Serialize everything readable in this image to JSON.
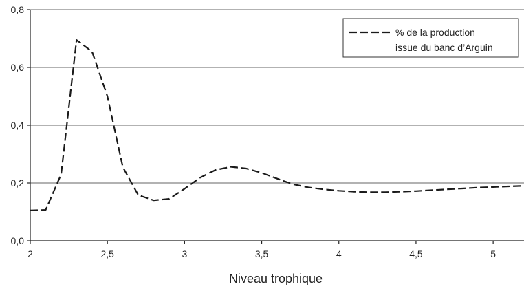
{
  "chart_data": {
    "type": "line",
    "title": "",
    "xlabel": "Niveau trophique",
    "ylabel": "",
    "xlim": [
      2,
      5.2
    ],
    "ylim": [
      0,
      0.8
    ],
    "x_ticks": [
      2,
      2.5,
      3,
      3.5,
      4,
      4.5,
      5
    ],
    "x_tick_labels": [
      "2",
      "2,5",
      "3",
      "3,5",
      "4",
      "4,5",
      "5"
    ],
    "y_ticks": [
      0,
      0.2,
      0.4,
      0.6,
      0.8
    ],
    "y_tick_labels": [
      "0,0",
      "0,2",
      "0,4",
      "0,6",
      "0,8"
    ],
    "grid": "horizontal",
    "legend_position": "top-right",
    "series": [
      {
        "name": "% de la production issue du banc d’Arguin",
        "legend_lines": [
          "% de la production",
          "issue du banc d’Arguin"
        ],
        "line_style": "dashed",
        "color": "#1a1a1a",
        "x": [
          2.0,
          2.1,
          2.2,
          2.3,
          2.4,
          2.5,
          2.6,
          2.7,
          2.8,
          2.9,
          3.0,
          3.1,
          3.2,
          3.3,
          3.4,
          3.5,
          3.6,
          3.7,
          3.8,
          3.9,
          4.0,
          4.1,
          4.2,
          4.3,
          4.4,
          4.5,
          4.6,
          4.7,
          4.8,
          4.9,
          5.0,
          5.1,
          5.2
        ],
        "y": [
          0.105,
          0.107,
          0.23,
          0.695,
          0.655,
          0.5,
          0.255,
          0.158,
          0.14,
          0.145,
          0.18,
          0.218,
          0.245,
          0.256,
          0.25,
          0.235,
          0.215,
          0.196,
          0.185,
          0.178,
          0.173,
          0.17,
          0.168,
          0.168,
          0.17,
          0.172,
          0.175,
          0.178,
          0.181,
          0.184,
          0.186,
          0.188,
          0.19
        ]
      }
    ]
  }
}
